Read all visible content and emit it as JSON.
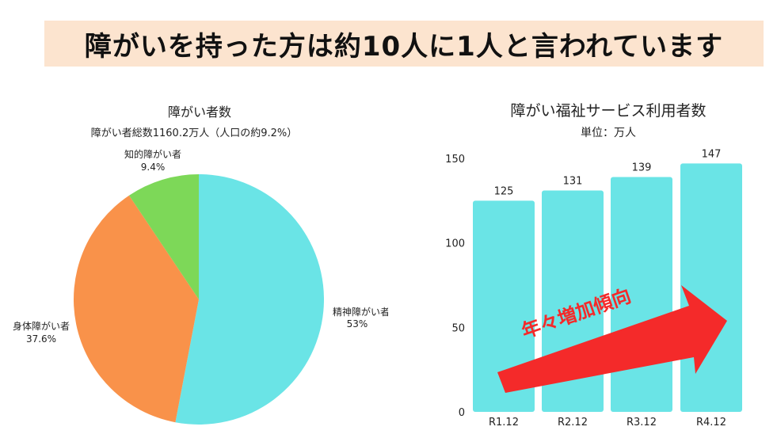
{
  "headline": "障がいを持った方は約10人に1人と言われています",
  "chart_data": [
    {
      "type": "pie",
      "title": "障がい者数",
      "subtitle": "障がい者総数1160.2万人（人口の約9.2%）",
      "slices": [
        {
          "name": "精神障がい者",
          "label": "53%",
          "value": 53,
          "color": "#6ae4e6"
        },
        {
          "name": "身体障がい者",
          "label": "37.6%",
          "value": 37.6,
          "color": "#f9924a"
        },
        {
          "name": "知的障がい者",
          "label": "9.4%",
          "value": 9.4,
          "color": "#7dd858"
        }
      ]
    },
    {
      "type": "bar",
      "title": "障がい福祉サービス利用者数",
      "subtitle": "単位：万人",
      "categories": [
        "R1.12",
        "R2.12",
        "R3.12",
        "R4.12"
      ],
      "values": [
        125,
        131,
        139,
        147
      ],
      "ylim": [
        0,
        150
      ],
      "yticks": [
        0,
        50,
        100,
        150
      ],
      "bar_color": "#6ae4e6",
      "annotation": "年々増加傾向",
      "annotation_color": "#f42a2a"
    }
  ]
}
